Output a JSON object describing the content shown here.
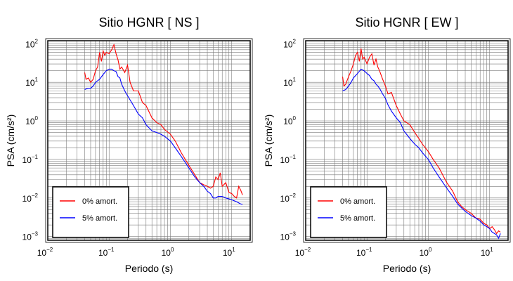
{
  "chart_data": [
    {
      "type": "line",
      "title": "Sitio HGNR [ NS ]",
      "xlabel": "Periodo (s)",
      "ylabel": "PSA (cm/s²)",
      "xscale": "log",
      "yscale": "log",
      "xlim": [
        0.01,
        20
      ],
      "ylim": [
        0.0008,
        120
      ],
      "xticks": [
        0.01,
        0.1,
        1,
        10
      ],
      "yticks": [
        0.001,
        0.01,
        0.1,
        1,
        10,
        100
      ],
      "grid": true,
      "legend_position": "bottom-left",
      "series": [
        {
          "name": "0% amort.",
          "color": "#ff0000",
          "x": [
            0.04,
            0.042,
            0.046,
            0.05,
            0.055,
            0.06,
            0.065,
            0.07,
            0.075,
            0.08,
            0.085,
            0.09,
            0.1,
            0.11,
            0.12,
            0.13,
            0.14,
            0.15,
            0.16,
            0.18,
            0.2,
            0.22,
            0.25,
            0.3,
            0.35,
            0.4,
            0.5,
            0.6,
            0.7,
            0.8,
            1.0,
            1.2,
            1.5,
            2.0,
            2.5,
            3.0,
            3.5,
            4.0,
            4.5,
            5.0,
            5.5,
            6.0,
            6.5,
            7.0,
            8.0,
            9.0,
            10.0,
            11.0,
            12.0,
            13.0,
            14.0,
            15.0
          ],
          "y": [
            18,
            12,
            13,
            10,
            12,
            20,
            25,
            60,
            35,
            65,
            50,
            60,
            55,
            70,
            95,
            55,
            38,
            22,
            25,
            18,
            28,
            10,
            6,
            6,
            3,
            2.5,
            1.2,
            0.9,
            0.8,
            0.6,
            0.45,
            0.3,
            0.15,
            0.07,
            0.04,
            0.025,
            0.022,
            0.02,
            0.018,
            0.02,
            0.035,
            0.03,
            0.045,
            0.02,
            0.025,
            0.014,
            0.013,
            0.011,
            0.01,
            0.02,
            0.016,
            0.012
          ]
        },
        {
          "name": "5% amort.",
          "color": "#0000ff",
          "x": [
            0.04,
            0.045,
            0.05,
            0.055,
            0.06,
            0.07,
            0.08,
            0.09,
            0.1,
            0.11,
            0.12,
            0.13,
            0.14,
            0.15,
            0.16,
            0.18,
            0.2,
            0.22,
            0.25,
            0.3,
            0.35,
            0.4,
            0.5,
            0.6,
            0.7,
            0.8,
            1.0,
            1.2,
            1.5,
            2.0,
            2.5,
            3.0,
            3.5,
            4.0,
            4.5,
            5.0,
            5.5,
            6.0,
            7.0,
            8.0,
            9.0,
            10.0,
            12.0,
            14.0,
            15.0
          ],
          "y": [
            6.5,
            7,
            7,
            8,
            10,
            12,
            16,
            20,
            22,
            22,
            20,
            19,
            14,
            13,
            9,
            6,
            4.5,
            3.5,
            2.5,
            1.5,
            1.2,
            0.8,
            0.55,
            0.5,
            0.45,
            0.4,
            0.3,
            0.2,
            0.12,
            0.06,
            0.035,
            0.025,
            0.02,
            0.015,
            0.013,
            0.01,
            0.01,
            0.011,
            0.011,
            0.01,
            0.0095,
            0.009,
            0.008,
            0.007,
            0.0068
          ]
        }
      ]
    },
    {
      "type": "line",
      "title": "Sitio HGNR [ EW ]",
      "xlabel": "Periodo (s)",
      "ylabel": "PSA (cm/s²)",
      "xscale": "log",
      "yscale": "log",
      "xlim": [
        0.01,
        20
      ],
      "ylim": [
        0.0008,
        120
      ],
      "xticks": [
        0.01,
        0.1,
        1,
        10
      ],
      "yticks": [
        0.001,
        0.01,
        0.1,
        1,
        10,
        100
      ],
      "grid": true,
      "legend_position": "bottom-left",
      "series": [
        {
          "name": "0% amort.",
          "color": "#ff0000",
          "x": [
            0.04,
            0.042,
            0.045,
            0.05,
            0.055,
            0.06,
            0.065,
            0.07,
            0.075,
            0.08,
            0.085,
            0.09,
            0.1,
            0.11,
            0.12,
            0.13,
            0.14,
            0.15,
            0.16,
            0.18,
            0.2,
            0.22,
            0.25,
            0.3,
            0.35,
            0.4,
            0.5,
            0.6,
            0.7,
            0.8,
            1.0,
            1.2,
            1.5,
            2.0,
            2.5,
            3.0,
            3.5,
            4.0,
            5.0,
            6.0,
            7.0,
            8.0,
            9.0,
            10.0,
            11.0,
            12.0,
            13.0,
            14.0,
            15.0
          ],
          "y": [
            14,
            8,
            9,
            14,
            20,
            30,
            50,
            60,
            35,
            75,
            40,
            45,
            30,
            45,
            55,
            28,
            40,
            25,
            20,
            12,
            8,
            5,
            5.5,
            2.5,
            1.5,
            1.0,
            0.8,
            0.5,
            0.35,
            0.25,
            0.16,
            0.1,
            0.06,
            0.025,
            0.015,
            0.008,
            0.006,
            0.005,
            0.004,
            0.003,
            0.0028,
            0.0022,
            0.002,
            0.0016,
            0.0018,
            0.0015,
            0.0012,
            0.0014,
            0.0013
          ]
        },
        {
          "name": "5% amort.",
          "color": "#0000ff",
          "x": [
            0.04,
            0.045,
            0.05,
            0.055,
            0.06,
            0.07,
            0.08,
            0.09,
            0.1,
            0.11,
            0.12,
            0.13,
            0.14,
            0.15,
            0.16,
            0.18,
            0.2,
            0.22,
            0.25,
            0.3,
            0.35,
            0.4,
            0.5,
            0.6,
            0.7,
            0.8,
            1.0,
            1.2,
            1.5,
            2.0,
            2.5,
            3.0,
            3.5,
            4.0,
            5.0,
            6.0,
            7.0,
            8.0,
            9.0,
            10.0,
            11.0,
            12.0,
            13.0,
            14.0,
            15.0
          ],
          "y": [
            6,
            6.5,
            8,
            10,
            13,
            17,
            22,
            20,
            17,
            15,
            12,
            11,
            9,
            8,
            7,
            5,
            3.8,
            2.6,
            1.8,
            1.2,
            0.9,
            0.55,
            0.35,
            0.25,
            0.2,
            0.15,
            0.1,
            0.06,
            0.035,
            0.018,
            0.011,
            0.007,
            0.0055,
            0.0045,
            0.0035,
            0.003,
            0.0025,
            0.002,
            0.0018,
            0.0016,
            0.0013,
            0.0012,
            0.0011,
            0.0009,
            0.0012
          ]
        }
      ]
    }
  ]
}
